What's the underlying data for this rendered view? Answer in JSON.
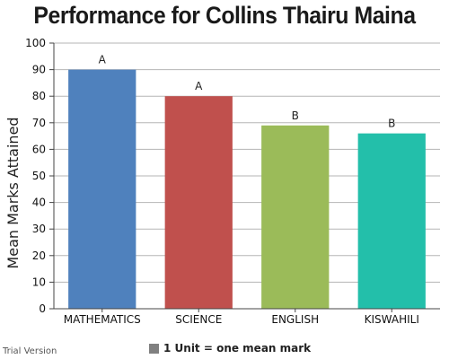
{
  "chart_data": {
    "type": "bar",
    "title": "Performance for Collins Thairu Maina",
    "ylabel": "Mean Marks Attained",
    "xlabel": "",
    "categories": [
      "MATHEMATICS",
      "SCIENCE",
      "ENGLISH",
      "KISWAHILI"
    ],
    "values": [
      90,
      80,
      69,
      66
    ],
    "data_labels": [
      "A",
      "A",
      "B",
      "B"
    ],
    "colors": [
      "#4f81bd",
      "#c0504d",
      "#9bbb59",
      "#23bfaa"
    ],
    "ylim": [
      0,
      100
    ],
    "yticks": [
      0,
      10,
      20,
      30,
      40,
      50,
      60,
      70,
      80,
      90,
      100
    ],
    "grid": true,
    "legend": {
      "label": "1 Unit = one mean mark",
      "color": "#808080",
      "position": "bottom-center"
    }
  },
  "watermark": "Trial Version"
}
